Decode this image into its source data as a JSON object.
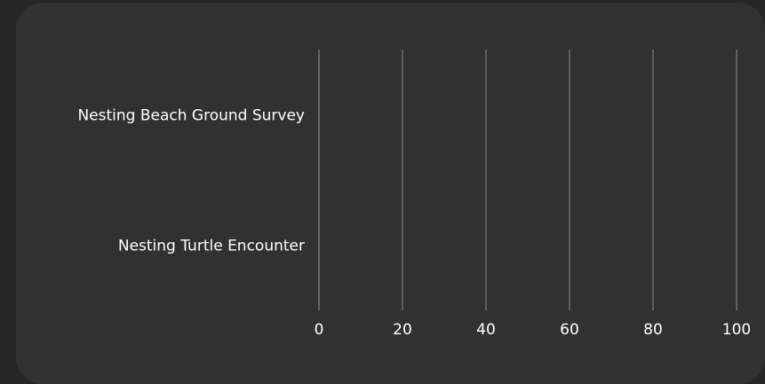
{
  "chart_data": {
    "type": "bar",
    "orientation": "horizontal",
    "title": "",
    "xlabel": "",
    "ylabel": "",
    "categories": [
      "Nesting Beach Ground Survey",
      "Nesting Turtle Encounter"
    ],
    "values": [
      0,
      0
    ],
    "xlim": [
      0,
      100
    ],
    "ticks": [
      "0",
      "20",
      "40",
      "60",
      "80",
      "100"
    ],
    "grid": true,
    "legend": "none",
    "colors": {
      "page_bg": "#262626",
      "card_bg": "#313131",
      "grid": "#8a8a8a",
      "text": "#ffffff"
    }
  }
}
